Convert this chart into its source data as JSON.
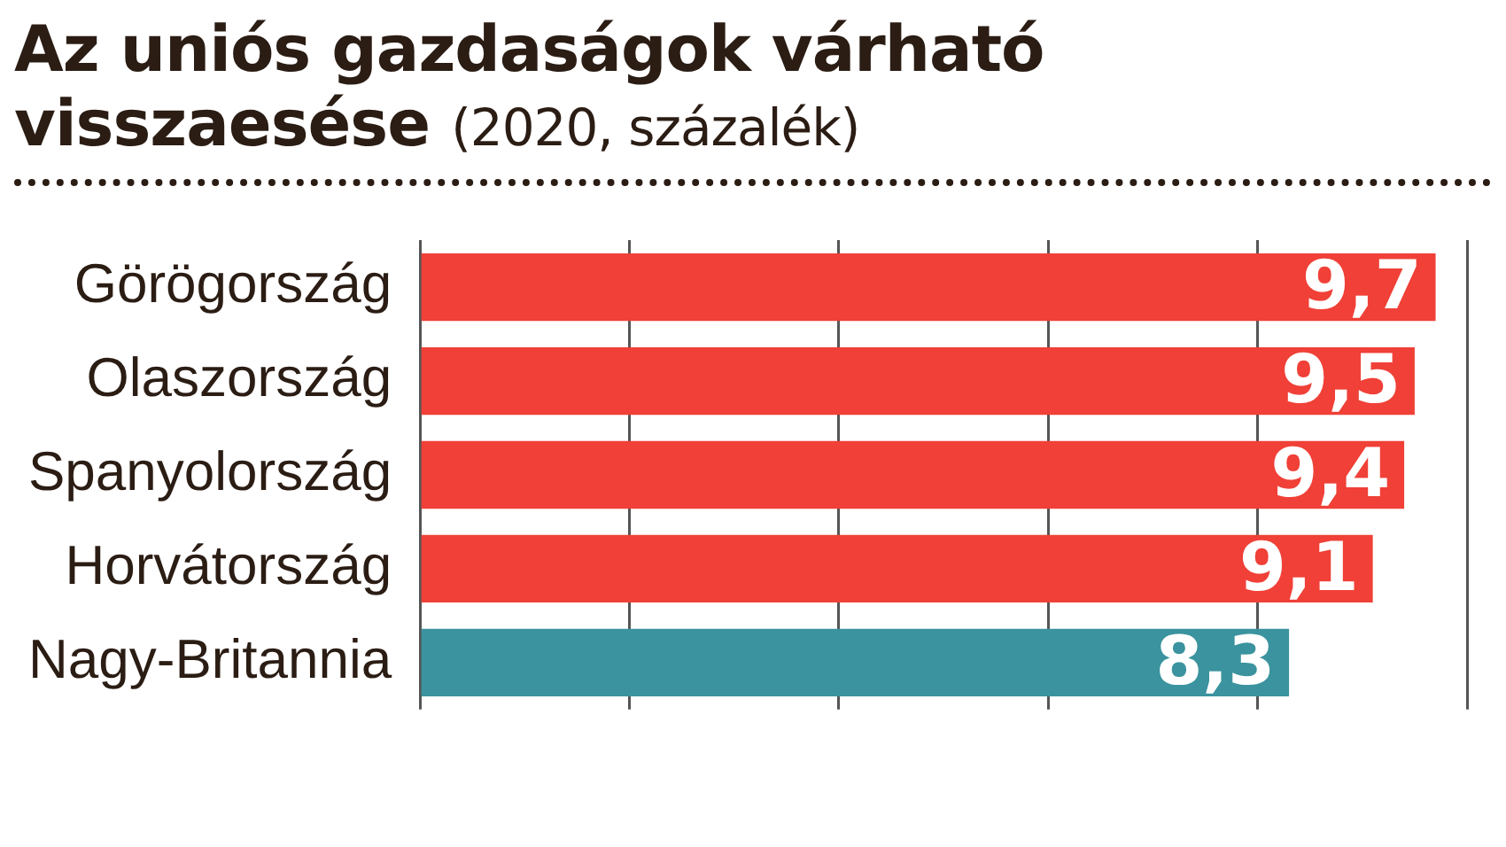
{
  "chart_data": {
    "type": "bar",
    "orientation": "horizontal",
    "title": "Az uniós gazdaságok várható visszaesése",
    "subtitle": "(2020, százalék)",
    "categories": [
      "Görögország",
      "Olaszország",
      "Spanyolország",
      "Horvátország",
      "Nagy-Britannia"
    ],
    "values": [
      9.7,
      9.5,
      9.4,
      9.1,
      8.3
    ],
    "colors": [
      "#f04037",
      "#f04037",
      "#f04037",
      "#f04037",
      "#3a939e"
    ],
    "value_labels": [
      "9,7",
      "9,5",
      "9,4",
      "9,1",
      "8,3"
    ],
    "xlim": [
      0,
      10
    ],
    "xticks": [
      {
        "value": 0,
        "label": null
      },
      {
        "value": 2,
        "label": null
      },
      {
        "value": 4,
        "label": null
      },
      {
        "value": 6,
        "label": null
      },
      {
        "value": 8,
        "label": null
      },
      {
        "value": 10,
        "label": null
      }
    ],
    "tick_labels": "y",
    "grid": "x",
    "legend": false
  }
}
